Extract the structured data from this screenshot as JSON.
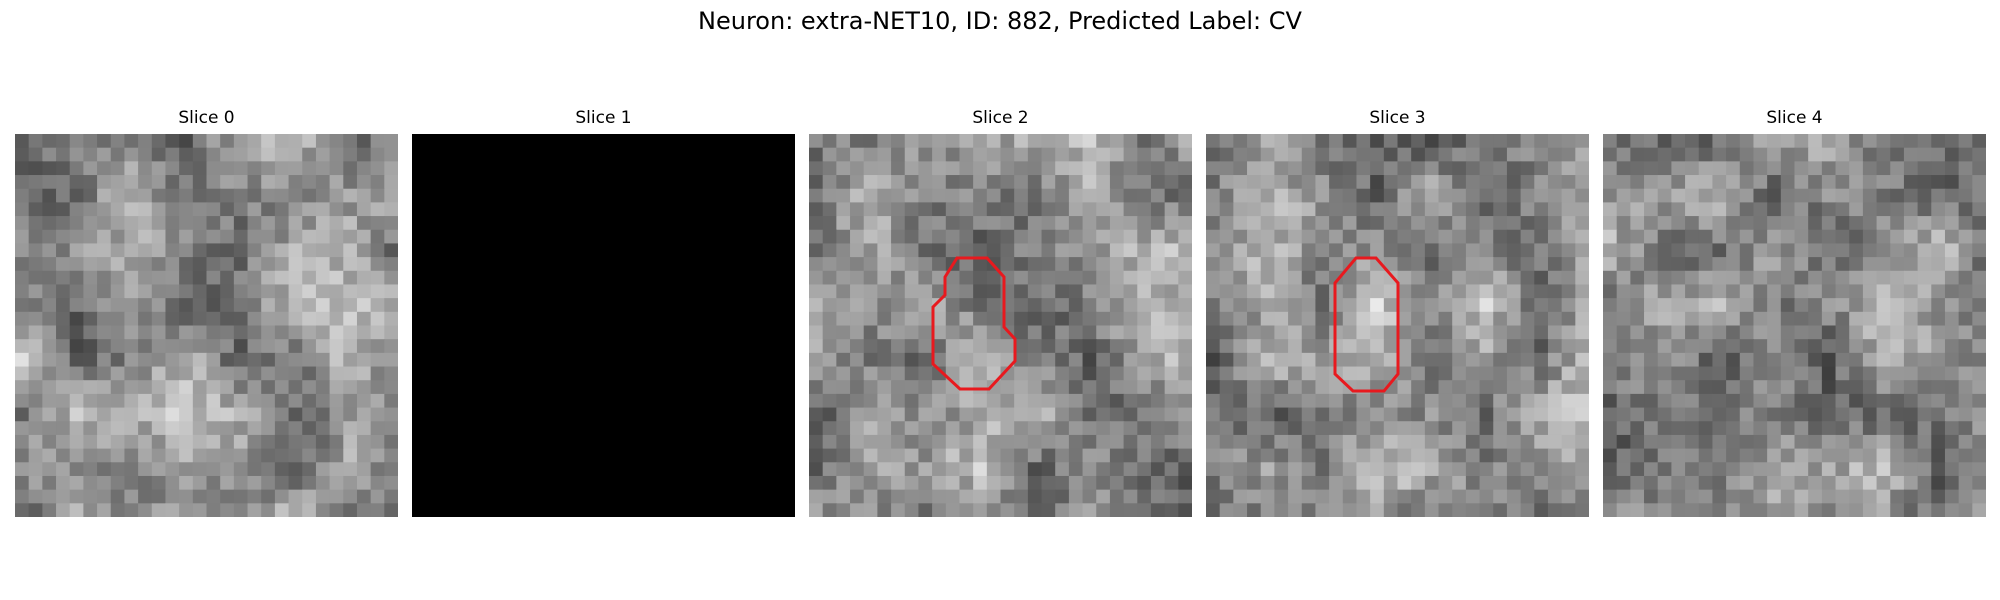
{
  "figure": {
    "title": "Neuron: extra-NET10, ID: 882, Predicted Label: CV"
  },
  "panels": [
    {
      "title": "Slice 0",
      "image": "grayscale-microscopy-tile",
      "has_contour": false
    },
    {
      "title": "Slice 1",
      "image": "blank-black-tile",
      "has_contour": false
    },
    {
      "title": "Slice 2",
      "image": "grayscale-microscopy-tile",
      "has_contour": true
    },
    {
      "title": "Slice 3",
      "image": "grayscale-microscopy-tile",
      "has_contour": true
    },
    {
      "title": "Slice 4",
      "image": "grayscale-microscopy-tile",
      "has_contour": false
    }
  ],
  "colors": {
    "contour": "#e8191e",
    "background": "#ffffff"
  }
}
